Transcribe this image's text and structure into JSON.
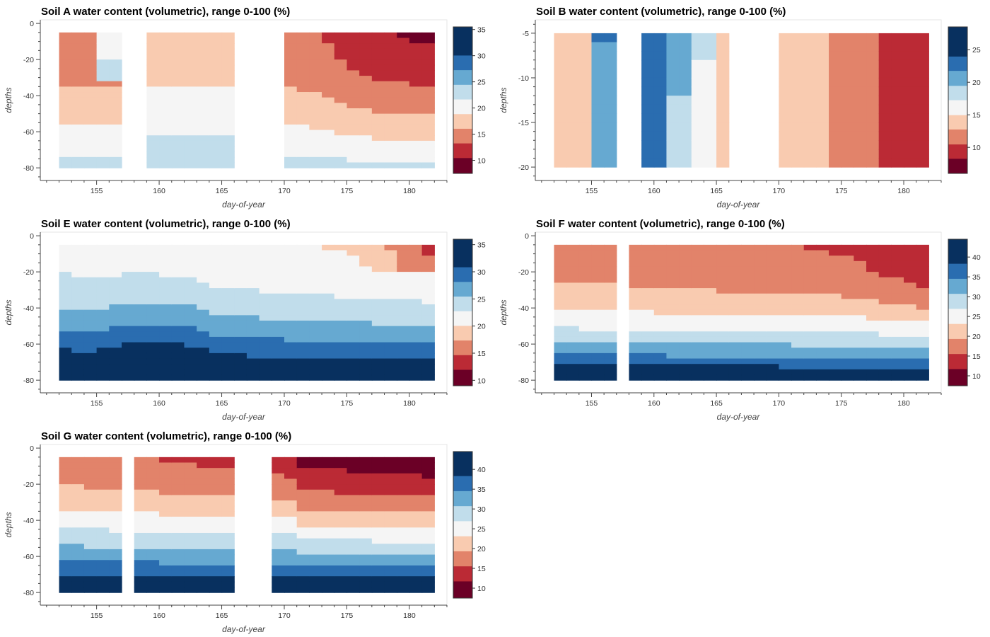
{
  "colors": {
    "palette_dark_red_to_dark_blue": [
      "#67001f",
      "#b2182b",
      "#d6604d",
      "#f4a582",
      "#fddbc7",
      "#f7f7f7",
      "#d1e5f0",
      "#92c5de",
      "#4393c3",
      "#2166ac",
      "#053061"
    ],
    "bins_low_to_high": [
      "#6b0026",
      "#bb2a35",
      "#e2836a",
      "#f9cbb0",
      "#f5f5f5",
      "#c1ddeb",
      "#66a9d1",
      "#2a6db0",
      "#08305f"
    ]
  },
  "chart_data": [
    {
      "type": "heatmap",
      "title": "Soil A water content (volumetric), range 0-100 (%)",
      "xlabel": "day-of-year",
      "ylabel": "depths",
      "xlim": [
        150.5,
        183
      ],
      "ylim": [
        -87,
        2
      ],
      "xticks": [
        155,
        160,
        165,
        170,
        175,
        180
      ],
      "yticks": [
        0,
        -20,
        -40,
        -60,
        -80
      ],
      "colorbar_ticks": [
        35,
        30,
        25,
        20,
        15,
        10
      ],
      "colorbar_range": [
        7.5,
        35.5
      ],
      "depth_range": [
        -80,
        -5
      ],
      "segments": [
        [
          152,
          157
        ],
        [
          159,
          166
        ],
        [
          170,
          182
        ]
      ],
      "bin_boundaries_percent": [
        10.5,
        13.3,
        16.1,
        18.9,
        21.7,
        24.5,
        27.3,
        30.1
      ],
      "description": "Wet lower layers (22-25%) under drier upper layers; driest (8-12%) near surface after day 176"
    },
    {
      "type": "heatmap",
      "title": "Soil B water content (volumetric), range 0-100 (%)",
      "xlabel": "day-of-year",
      "ylabel": "depths",
      "xlim": [
        150.5,
        183
      ],
      "ylim": [
        -21.5,
        -3.5
      ],
      "xticks": [
        155,
        160,
        165,
        170,
        175,
        180
      ],
      "yticks": [
        -5,
        -10,
        -15,
        -20
      ],
      "colorbar_ticks": [
        25,
        20,
        15,
        10
      ],
      "colorbar_range": [
        6,
        28.5
      ],
      "depth_range": [
        -20,
        -5
      ],
      "segments": [
        [
          152,
          157
        ],
        [
          159,
          166
        ],
        [
          170,
          182
        ]
      ],
      "bin_boundaries_percent": [
        8.3,
        10.5,
        12.8,
        15.0,
        17.3,
        19.5,
        21.8,
        24.0
      ],
      "description": "Wettest (20-26%) around days 155-161; driest (8-11%) after day 178"
    },
    {
      "type": "heatmap",
      "title": "Soil E water content (volumetric), range 0-100 (%)",
      "xlabel": "day-of-year",
      "ylabel": "depths",
      "xlim": [
        150.5,
        183
      ],
      "ylim": [
        -87,
        2
      ],
      "xticks": [
        155,
        160,
        165,
        170,
        175,
        180
      ],
      "yticks": [
        0,
        -20,
        -40,
        -60,
        -80
      ],
      "colorbar_ticks": [
        35,
        30,
        25,
        20,
        15,
        10
      ],
      "colorbar_range": [
        9,
        36
      ],
      "depth_range": [
        -80,
        -5
      ],
      "segments": [
        [
          152,
          182
        ]
      ],
      "bin_boundaries_percent": [
        12.0,
        14.7,
        17.4,
        20.1,
        22.8,
        25.5,
        28.2,
        30.9
      ],
      "description": "Strong vertical gradient: 32-36% at depth, 12-20% near surface late in period"
    },
    {
      "type": "heatmap",
      "title": "Soil F water content (volumetric), range 0-100 (%)",
      "xlabel": "day-of-year",
      "ylabel": "depths",
      "xlim": [
        150.5,
        183
      ],
      "ylim": [
        -87,
        2
      ],
      "xticks": [
        155,
        160,
        165,
        170,
        175,
        180
      ],
      "yticks": [
        0,
        -20,
        -40,
        -60,
        -80
      ],
      "colorbar_ticks": [
        40,
        35,
        30,
        25,
        20,
        15,
        10
      ],
      "colorbar_range": [
        7.5,
        44.5
      ],
      "depth_range": [
        -80,
        -5
      ],
      "segments": [
        [
          152,
          157
        ],
        [
          158,
          182
        ]
      ],
      "bin_boundaries_percent": [
        11.8,
        15.6,
        19.4,
        23.2,
        27.0,
        30.8,
        34.6,
        38.4
      ],
      "description": "Wet bands (30-44%) below -55; dry (10-18%) upper 40 cm"
    },
    {
      "type": "heatmap",
      "title": "Soil G water content (volumetric), range 0-100 (%)",
      "xlabel": "day-of-year",
      "ylabel": "depths",
      "xlim": [
        150.5,
        183
      ],
      "ylim": [
        -87,
        2
      ],
      "xticks": [
        155,
        160,
        165,
        170,
        175,
        180
      ],
      "yticks": [
        0,
        -20,
        -40,
        -60,
        -80
      ],
      "colorbar_ticks": [
        40,
        35,
        30,
        25,
        20,
        15,
        10
      ],
      "colorbar_range": [
        7.5,
        44.5
      ],
      "depth_range": [
        -80,
        -5
      ],
      "segments": [
        [
          152,
          157
        ],
        [
          158,
          166
        ],
        [
          169,
          182
        ]
      ],
      "bin_boundaries_percent": [
        11.8,
        15.6,
        19.4,
        23.2,
        27.0,
        30.8,
        34.6,
        38.4
      ],
      "description": "Layered profile: 38-44% at -80, 12-18% near surface after day 171"
    }
  ]
}
